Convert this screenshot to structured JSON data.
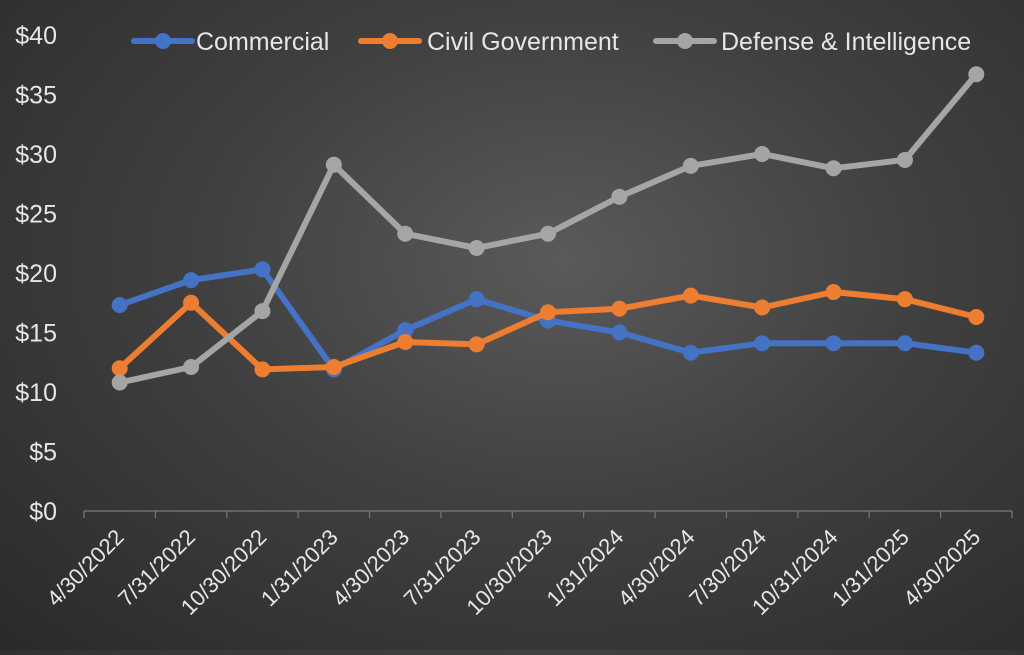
{
  "chart_data": {
    "type": "line",
    "title": "",
    "xlabel": "",
    "ylabel": "",
    "categories": [
      "4/30/2022",
      "7/31/2022",
      "10/30/2022",
      "1/31/2023",
      "4/30/2023",
      "7/31/2023",
      "10/30/2023",
      "1/31/2024",
      "4/30/2024",
      "7/30/2024",
      "10/31/2024",
      "1/31/2025",
      "4/30/2025"
    ],
    "ylim": [
      0,
      40
    ],
    "yticks": [
      "$0",
      "$5",
      "$10",
      "$15",
      "$20",
      "$25",
      "$30",
      "$35",
      "$40"
    ],
    "ytick_values": [
      0,
      5,
      10,
      15,
      20,
      25,
      30,
      35,
      40
    ],
    "grid": false,
    "legend_position": "top",
    "series": [
      {
        "name": "Commercial",
        "color": "#4472c4",
        "values": [
          17.3,
          19.4,
          20.3,
          11.9,
          15.2,
          17.8,
          16.0,
          15.0,
          13.3,
          14.1,
          14.1,
          14.1,
          13.3
        ]
      },
      {
        "name": "Civil Government",
        "color": "#ed7d31",
        "values": [
          12.0,
          17.5,
          11.9,
          12.1,
          14.2,
          14.0,
          16.7,
          17.0,
          18.1,
          17.1,
          18.4,
          17.8,
          16.3
        ]
      },
      {
        "name": "Defense & Intelligence",
        "color": "#a5a5a5",
        "values": [
          10.8,
          12.1,
          16.8,
          29.1,
          23.3,
          22.1,
          23.3,
          26.4,
          29.0,
          30.0,
          28.8,
          29.5,
          36.7
        ]
      }
    ]
  }
}
